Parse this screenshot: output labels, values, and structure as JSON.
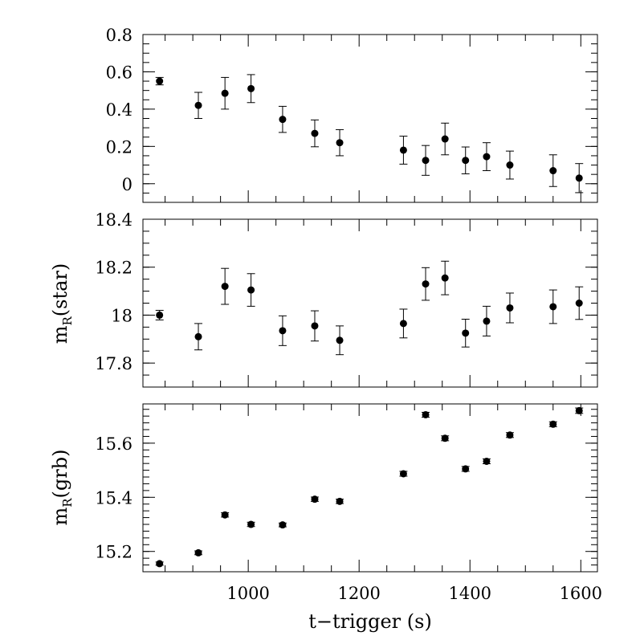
{
  "chart_data": [
    {
      "type": "scatter",
      "title": "",
      "xlabel": "t−trigger (s)",
      "ylabel": "",
      "xlim": [
        810,
        1630
      ],
      "ylim": [
        -0.1,
        0.8
      ],
      "x_ticks": [
        "1000",
        "1200",
        "1400",
        "1600"
      ],
      "y_ticks": [
        "0",
        "0.2",
        "0.4",
        "0.6",
        "0.8"
      ],
      "series": [
        {
          "x": [
            840,
            910,
            958,
            1005,
            1062,
            1120,
            1165,
            1280,
            1320,
            1355,
            1392,
            1430,
            1472,
            1550,
            1597
          ],
          "y": [
            0.55,
            0.42,
            0.485,
            0.51,
            0.345,
            0.27,
            0.22,
            0.18,
            0.125,
            0.24,
            0.125,
            0.145,
            0.1,
            0.07,
            0.03
          ],
          "yerr": [
            0.02,
            0.07,
            0.085,
            0.075,
            0.07,
            0.072,
            0.07,
            0.075,
            0.08,
            0.085,
            0.072,
            0.075,
            0.075,
            0.085,
            0.078
          ]
        }
      ]
    },
    {
      "type": "scatter",
      "title": "",
      "xlabel": "t−trigger (s)",
      "ylabel_main": "m",
      "ylabel_sub": "R",
      "ylabel_paren": "(star)",
      "xlim": [
        810,
        1630
      ],
      "ylim": [
        17.7,
        18.4
      ],
      "x_ticks": [
        "1000",
        "1200",
        "1400",
        "1600"
      ],
      "y_ticks": [
        "17.8",
        "18",
        "18.2",
        "18.4"
      ],
      "series": [
        {
          "x": [
            840,
            910,
            958,
            1005,
            1062,
            1120,
            1165,
            1280,
            1320,
            1355,
            1392,
            1430,
            1472,
            1550,
            1597
          ],
          "y": [
            18.0,
            17.91,
            18.12,
            18.105,
            17.935,
            17.955,
            17.895,
            17.965,
            18.13,
            18.155,
            17.925,
            17.975,
            18.03,
            18.035,
            18.05
          ],
          "yerr": [
            0.02,
            0.055,
            0.075,
            0.068,
            0.062,
            0.063,
            0.06,
            0.06,
            0.068,
            0.07,
            0.058,
            0.062,
            0.062,
            0.07,
            0.068
          ]
        }
      ]
    },
    {
      "type": "scatter",
      "title": "",
      "xlabel": "t−trigger (s)",
      "ylabel_main": "m",
      "ylabel_sub": "R",
      "ylabel_paren": "(grb)",
      "xlim": [
        810,
        1630
      ],
      "ylim": [
        15.125,
        15.745
      ],
      "x_ticks": [
        "1000",
        "1200",
        "1400",
        "1600"
      ],
      "y_ticks": [
        "15.2",
        "15.4",
        "15.6"
      ],
      "series": [
        {
          "x": [
            840,
            910,
            958,
            1005,
            1062,
            1120,
            1165,
            1280,
            1320,
            1355,
            1392,
            1430,
            1472,
            1550,
            1597
          ],
          "y": [
            15.155,
            15.195,
            15.335,
            15.3,
            15.298,
            15.393,
            15.385,
            15.487,
            15.705,
            15.618,
            15.505,
            15.533,
            15.63,
            15.67,
            15.72
          ],
          "yerr": [
            0.006,
            0.007,
            0.008,
            0.008,
            0.007,
            0.008,
            0.008,
            0.009,
            0.009,
            0.009,
            0.009,
            0.009,
            0.009,
            0.009,
            0.01
          ]
        }
      ]
    }
  ]
}
